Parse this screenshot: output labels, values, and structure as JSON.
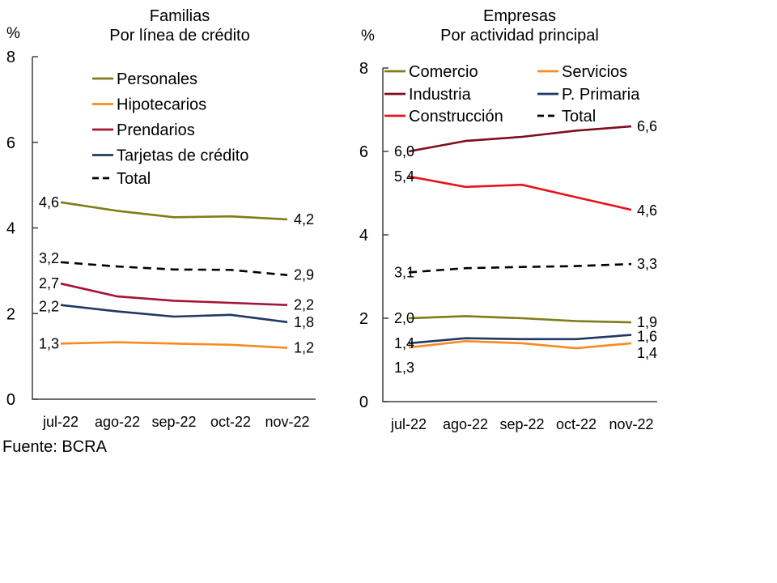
{
  "page": {
    "source_note": "Fuente: BCRA"
  },
  "chart_data": [
    {
      "type": "line",
      "title": "Familias",
      "subtitle": "Por línea de crédito",
      "unit": "%",
      "categories": [
        "jul-22",
        "ago-22",
        "sep-22",
        "oct-22",
        "nov-22"
      ],
      "ylim": [
        0,
        8
      ],
      "yticks": [
        0,
        2,
        4,
        6,
        8
      ],
      "grid": false,
      "legend_position": "upper-left-inside-single-column",
      "series": [
        {
          "name": "Personales",
          "color": "#7F7D17",
          "dash": false,
          "values": [
            4.6,
            4.4,
            4.25,
            4.27,
            4.2
          ],
          "start_label": "4,6",
          "end_label": "4,2"
        },
        {
          "name": "Hipotecarios",
          "color": "#F78B1F",
          "dash": false,
          "values": [
            1.3,
            1.33,
            1.3,
            1.27,
            1.2
          ],
          "start_label": "1,3",
          "end_label": "1,2"
        },
        {
          "name": "Prendarios",
          "color": "#A41438",
          "dash": false,
          "values": [
            2.7,
            2.4,
            2.3,
            2.25,
            2.2
          ],
          "start_label": "2,7",
          "end_label": "2,2"
        },
        {
          "name": "Tarjetas de crédito",
          "color": "#1F3864",
          "dash": false,
          "values": [
            2.2,
            2.05,
            1.93,
            1.97,
            1.8
          ],
          "start_label": "2,2",
          "end_label": "1,8"
        },
        {
          "name": "Total",
          "color": "#000000",
          "dash": true,
          "values": [
            3.2,
            3.1,
            3.03,
            3.02,
            2.9
          ],
          "start_label": "3,2",
          "end_label": "2,9"
        }
      ]
    },
    {
      "type": "line",
      "title": "Empresas",
      "subtitle": "Por actividad principal",
      "unit": "%",
      "categories": [
        "jul-22",
        "ago-22",
        "sep-22",
        "oct-22",
        "nov-22"
      ],
      "ylim": [
        0,
        8
      ],
      "yticks": [
        0,
        2,
        4,
        6,
        8
      ],
      "grid": false,
      "legend_position": "upper-left-inside-two-columns",
      "series": [
        {
          "name": "Comercio",
          "color": "#7F7D17",
          "dash": false,
          "values": [
            2.0,
            2.05,
            2.0,
            1.93,
            1.9
          ],
          "start_label": "2,0",
          "end_label": "1,9"
        },
        {
          "name": "Industria",
          "color": "#7D0F21",
          "dash": false,
          "values": [
            6.0,
            6.25,
            6.35,
            6.5,
            6.6
          ],
          "start_label": "6,0",
          "end_label": "6,6"
        },
        {
          "name": "Construcción",
          "color": "#E8131B",
          "dash": false,
          "values": [
            5.4,
            5.15,
            5.2,
            4.9,
            4.6
          ],
          "start_label": "5,4",
          "end_label": "4,6"
        },
        {
          "name": "Servicios",
          "color": "#F78B1F",
          "dash": false,
          "values": [
            1.3,
            1.45,
            1.4,
            1.28,
            1.4
          ],
          "start_label": "1,3",
          "end_label": "1,4"
        },
        {
          "name": "P. Primaria",
          "color": "#1F3864",
          "dash": false,
          "values": [
            1.4,
            1.52,
            1.5,
            1.5,
            1.6
          ],
          "start_label": "1,4",
          "end_label": "1,6"
        },
        {
          "name": "Total",
          "color": "#000000",
          "dash": true,
          "values": [
            3.1,
            3.2,
            3.23,
            3.25,
            3.3
          ],
          "start_label": "3,1",
          "end_label": "3,3"
        }
      ]
    }
  ]
}
